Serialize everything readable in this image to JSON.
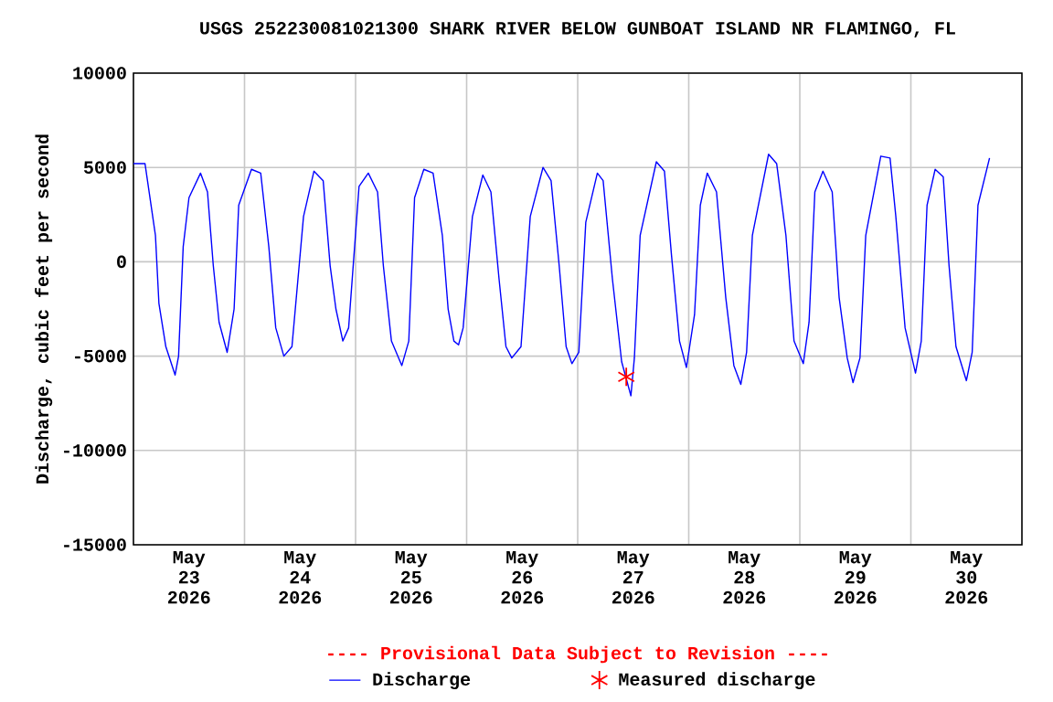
{
  "chart_data": {
    "type": "line",
    "title": "USGS 252230081021300 SHARK RIVER BELOW GUNBOAT ISLAND NR FLAMINGO, FL",
    "ylabel": "Discharge, cubic feet per second",
    "annotations": [
      "---- Provisional Data Subject to Revision ----"
    ],
    "xlim": [
      "2026-05-23T00:00",
      "2026-05-31T00:00"
    ],
    "xticks": [
      {
        "value": "2026-05-24T00:00",
        "label": null
      },
      {
        "value": "2026-05-25T00:00",
        "label": null
      },
      {
        "value": "2026-05-26T00:00",
        "label": null
      },
      {
        "value": "2026-05-27T00:00",
        "label": null
      },
      {
        "value": "2026-05-28T00:00",
        "label": null
      },
      {
        "value": "2026-05-29T00:00",
        "label": null
      },
      {
        "value": "2026-05-30T00:00",
        "label": null
      },
      {
        "value": "2026-05-23T12:00",
        "label": "May 23 2026"
      },
      {
        "value": "2026-05-24T12:00",
        "label": "May 24 2026"
      },
      {
        "value": "2026-05-25T12:00",
        "label": "May 25 2026"
      },
      {
        "value": "2026-05-26T12:00",
        "label": "May 26 2026"
      },
      {
        "value": "2026-05-27T12:00",
        "label": "May 27 2026"
      },
      {
        "value": "2026-05-28T12:00",
        "label": "May 28 2026"
      },
      {
        "value": "2026-05-29T12:00",
        "label": "May 29 2026"
      },
      {
        "value": "2026-05-30T12:00",
        "label": "May 30 2026"
      }
    ],
    "ylim": [
      -15000,
      10000
    ],
    "yticks": [
      -15000,
      -10000,
      -5000,
      0,
      5000,
      10000
    ],
    "grid": true,
    "legend": "bottom",
    "series": [
      {
        "name": "Discharge",
        "color": "#0000ff",
        "marker": "none",
        "x": [
          "2026-05-23T00:00",
          "2026-05-23T02:30",
          "2026-05-23T04:45",
          "2026-05-23T05:30",
          "2026-05-23T07:00",
          "2026-05-23T09:00",
          "2026-05-23T09:45",
          "2026-05-23T10:45",
          "2026-05-23T12:00",
          "2026-05-23T14:30",
          "2026-05-23T16:00",
          "2026-05-23T17:15",
          "2026-05-23T18:30",
          "2026-05-23T20:15",
          "2026-05-23T21:45",
          "2026-05-23T22:45",
          "2026-05-24T01:30",
          "2026-05-24T03:30",
          "2026-05-24T05:15",
          "2026-05-24T06:45",
          "2026-05-24T08:30",
          "2026-05-24T10:15",
          "2026-05-24T12:45",
          "2026-05-24T15:00",
          "2026-05-24T17:00",
          "2026-05-24T18:30",
          "2026-05-24T19:45",
          "2026-05-24T21:15",
          "2026-05-24T22:30",
          "2026-05-25T00:45",
          "2026-05-25T02:45",
          "2026-05-25T04:45",
          "2026-05-25T06:00",
          "2026-05-25T07:45",
          "2026-05-25T10:00",
          "2026-05-25T11:30",
          "2026-05-25T12:45",
          "2026-05-25T14:45",
          "2026-05-25T16:45",
          "2026-05-25T18:45",
          "2026-05-25T20:00",
          "2026-05-25T21:15",
          "2026-05-25T22:15",
          "2026-05-25T23:15",
          "2026-05-26T01:15",
          "2026-05-26T03:30",
          "2026-05-26T05:15",
          "2026-05-26T07:00",
          "2026-05-26T08:30",
          "2026-05-26T09:45",
          "2026-05-26T11:45",
          "2026-05-26T13:45",
          "2026-05-26T16:30",
          "2026-05-26T18:15",
          "2026-05-26T20:00",
          "2026-05-26T21:30",
          "2026-05-26T22:45",
          "2026-05-27T00:15",
          "2026-05-27T01:45",
          "2026-05-27T04:15",
          "2026-05-27T05:30",
          "2026-05-27T07:30",
          "2026-05-27T09:30",
          "2026-05-27T11:30",
          "2026-05-27T12:15",
          "2026-05-27T13:30",
          "2026-05-27T17:00",
          "2026-05-27T18:45",
          "2026-05-27T20:15",
          "2026-05-27T22:00",
          "2026-05-27T23:30",
          "2026-05-28T01:15",
          "2026-05-28T02:30",
          "2026-05-28T04:00",
          "2026-05-28T06:00",
          "2026-05-28T08:00",
          "2026-05-28T09:45",
          "2026-05-28T11:15",
          "2026-05-28T12:30",
          "2026-05-28T13:45",
          "2026-05-28T17:15",
          "2026-05-28T19:00",
          "2026-05-28T21:00",
          "2026-05-28T22:45",
          "2026-05-29T00:45",
          "2026-05-29T02:00",
          "2026-05-29T03:15",
          "2026-05-29T05:00",
          "2026-05-29T07:00",
          "2026-05-29T08:30",
          "2026-05-29T10:15",
          "2026-05-29T11:30",
          "2026-05-29T13:00",
          "2026-05-29T14:15",
          "2026-05-29T17:30",
          "2026-05-29T19:30",
          "2026-05-29T20:45",
          "2026-05-29T22:45",
          "2026-05-30T01:00",
          "2026-05-30T02:15",
          "2026-05-30T03:30",
          "2026-05-30T05:15",
          "2026-05-30T07:00",
          "2026-05-30T08:15",
          "2026-05-30T09:45",
          "2026-05-30T12:00",
          "2026-05-30T13:15",
          "2026-05-30T14:30",
          "2026-05-30T17:00"
        ],
        "values": [
          5200,
          5200,
          1400,
          -2200,
          -4500,
          -6000,
          -5000,
          800,
          3400,
          4700,
          3700,
          -200,
          -3200,
          -4800,
          -2500,
          3000,
          4900,
          4700,
          800,
          -3500,
          -5000,
          -4500,
          2400,
          4800,
          4300,
          -200,
          -2500,
          -4200,
          -3500,
          4000,
          4700,
          3700,
          -200,
          -4200,
          -5500,
          -4200,
          3400,
          4900,
          4700,
          1400,
          -2500,
          -4200,
          -4400,
          -3500,
          2400,
          4600,
          3700,
          -900,
          -4500,
          -5100,
          -4500,
          2400,
          5000,
          4300,
          -200,
          -4500,
          -5400,
          -4800,
          2100,
          4700,
          4300,
          -900,
          -5300,
          -7100,
          -5100,
          1400,
          5300,
          4800,
          400,
          -4200,
          -5600,
          -2800,
          3000,
          4700,
          3700,
          -1900,
          -5500,
          -6500,
          -4800,
          1400,
          5700,
          5200,
          1400,
          -4200,
          -5400,
          -3200,
          3700,
          4800,
          3700,
          -1900,
          -5100,
          -6400,
          -5100,
          1400,
          5600,
          5500,
          2400,
          -3500,
          -5900,
          -4200,
          3000,
          4900,
          4500,
          -200,
          -4500,
          -6300,
          -4800,
          3000,
          5500
        ]
      },
      {
        "name": "Measured discharge",
        "color": "#ff0000",
        "type": "scatter",
        "marker": "cross",
        "x": [
          "2026-05-27T10:30"
        ],
        "values": [
          -6100
        ]
      }
    ]
  }
}
